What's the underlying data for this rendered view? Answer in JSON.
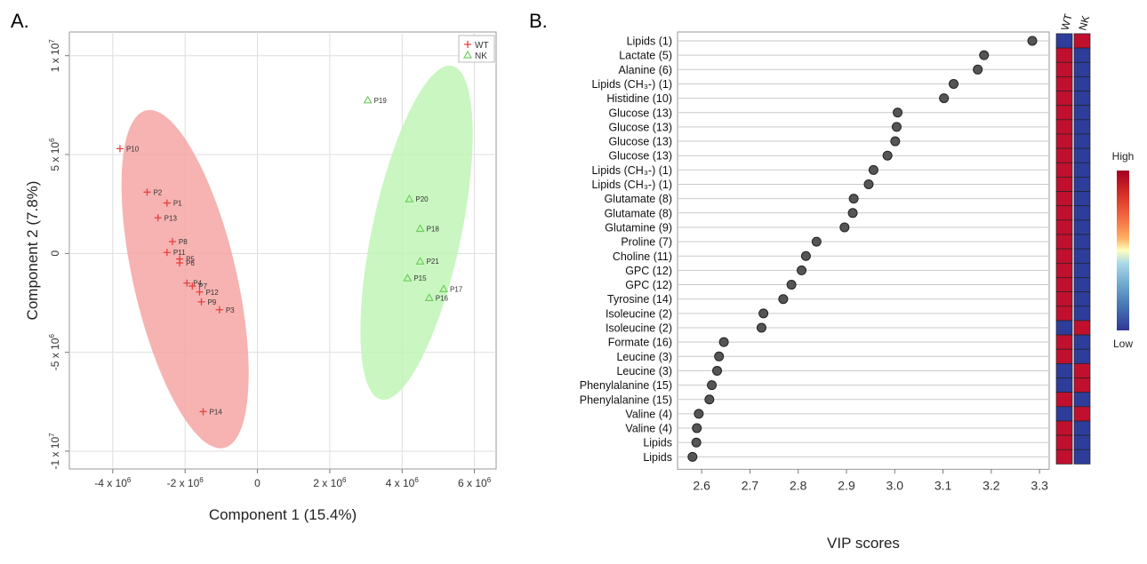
{
  "panel_a_label": "A.",
  "panel_b_label": "B.",
  "chart_data": [
    {
      "type": "scatter",
      "title": "",
      "xlabel": "Component 1 (15.4%)",
      "ylabel": "Component 2 (7.8%)",
      "xlim": [
        -5200000,
        6600000
      ],
      "ylim": [
        -10900000,
        11200000
      ],
      "grid": true,
      "legend_position": "top-right",
      "x_ticks": [
        {
          "value": -4000000,
          "base": "-4 x 10",
          "exp": "6"
        },
        {
          "value": -2000000,
          "base": "-2 x 10",
          "exp": "6"
        },
        {
          "value": 0,
          "base": "0",
          "exp": ""
        },
        {
          "value": 2000000,
          "base": "2 x 10",
          "exp": "6"
        },
        {
          "value": 4000000,
          "base": "4 x 10",
          "exp": "6"
        },
        {
          "value": 6000000,
          "base": "6 x 10",
          "exp": "6"
        }
      ],
      "y_ticks": [
        {
          "value": -10000000,
          "base": "-1 x 10",
          "exp": "7"
        },
        {
          "value": -5000000,
          "base": "-5 x 10",
          "exp": "6"
        },
        {
          "value": 0,
          "base": "0",
          "exp": ""
        },
        {
          "value": 5000000,
          "base": "5 x 10",
          "exp": "6"
        },
        {
          "value": 10000000,
          "base": "1 x 10",
          "exp": "7"
        }
      ],
      "series": [
        {
          "name": "WT",
          "marker": "+",
          "color": "#e8403f",
          "ellipse_color": "#f4a6a3",
          "ellipse": {
            "cx": -2000000,
            "cy": -1300000,
            "rx": 6800000,
            "ry": 1050000,
            "angle_deg": 103
          },
          "points": [
            {
              "label": "P10",
              "x": -3800000,
              "y": 5300000
            },
            {
              "label": "P2",
              "x": -3050000,
              "y": 3100000
            },
            {
              "label": "P1",
              "x": -2500000,
              "y": 2550000
            },
            {
              "label": "P13",
              "x": -2750000,
              "y": 1800000
            },
            {
              "label": "P8",
              "x": -2350000,
              "y": 600000
            },
            {
              "label": "P11",
              "x": -2500000,
              "y": 50000
            },
            {
              "label": "P5",
              "x": -2150000,
              "y": -280000
            },
            {
              "label": "P6",
              "x": -2150000,
              "y": -480000
            },
            {
              "label": "P4",
              "x": -1950000,
              "y": -1500000
            },
            {
              "label": "P7",
              "x": -1800000,
              "y": -1650000
            },
            {
              "label": "P12",
              "x": -1600000,
              "y": -1950000
            },
            {
              "label": "P9",
              "x": -1550000,
              "y": -2450000
            },
            {
              "label": "P3",
              "x": -1050000,
              "y": -2850000
            },
            {
              "label": "P14",
              "x": -1500000,
              "y": -8000000
            }
          ]
        },
        {
          "name": "NK",
          "marker": "triangle",
          "color": "#6fcf5e",
          "ellipse_color": "#bff5b6",
          "ellipse": {
            "cx": 4400000,
            "cy": 1050000,
            "rx": 8100000,
            "ry": 1000000,
            "angle_deg": 77
          },
          "points": [
            {
              "label": "P19",
              "x": 3050000,
              "y": 7750000
            },
            {
              "label": "P20",
              "x": 4200000,
              "y": 2750000
            },
            {
              "label": "P18",
              "x": 4500000,
              "y": 1250000
            },
            {
              "label": "P21",
              "x": 4500000,
              "y": -400000
            },
            {
              "label": "P15",
              "x": 4150000,
              "y": -1250000
            },
            {
              "label": "P17",
              "x": 5150000,
              "y": -1800000
            },
            {
              "label": "P16",
              "x": 4750000,
              "y": -2250000
            }
          ]
        }
      ]
    },
    {
      "type": "scatter",
      "title": "",
      "xlabel": "VIP scores",
      "ylabel": "",
      "xlim": [
        2.55,
        3.32
      ],
      "x_ticks": [
        2.6,
        2.7,
        2.8,
        2.9,
        3.0,
        3.1,
        3.2,
        3.3
      ],
      "x_tick_labels": [
        "2.6",
        "2.7",
        "2.8",
        "2.9",
        "3.0",
        "3.1",
        "3.2",
        "3.3"
      ],
      "heatmap_columns": [
        "WT",
        "NK"
      ],
      "heatmap_colors": {
        "high": "#c0102e",
        "low": "#2e3d9a"
      },
      "color_scale": {
        "high_label": "High",
        "low_label": "Low"
      },
      "points": [
        {
          "label": "Lipids (1)",
          "vip": 3.285,
          "WT": "low",
          "NK": "high"
        },
        {
          "label": "Lactate (5)",
          "vip": 3.185,
          "WT": "high",
          "NK": "low"
        },
        {
          "label": "Alanine (6)",
          "vip": 3.172,
          "WT": "high",
          "NK": "low"
        },
        {
          "label": "Lipids (CH₃-) (1)",
          "vip": 3.122,
          "WT": "high",
          "NK": "low"
        },
        {
          "label": "Histidine (10)",
          "vip": 3.102,
          "WT": "high",
          "NK": "low"
        },
        {
          "label": "Glucose (13)",
          "vip": 3.006,
          "WT": "high",
          "NK": "low"
        },
        {
          "label": "Glucose (13)",
          "vip": 3.004,
          "WT": "high",
          "NK": "low"
        },
        {
          "label": "Glucose (13)",
          "vip": 3.001,
          "WT": "high",
          "NK": "low"
        },
        {
          "label": "Glucose (13)",
          "vip": 2.985,
          "WT": "high",
          "NK": "low"
        },
        {
          "label": "Lipids (CH₃-) (1)",
          "vip": 2.956,
          "WT": "high",
          "NK": "low"
        },
        {
          "label": "Lipids (CH₃-) (1)",
          "vip": 2.946,
          "WT": "high",
          "NK": "low"
        },
        {
          "label": "Glutamate (8)",
          "vip": 2.915,
          "WT": "high",
          "NK": "low"
        },
        {
          "label": "Glutamate (8)",
          "vip": 2.913,
          "WT": "high",
          "NK": "low"
        },
        {
          "label": "Glutamine (9)",
          "vip": 2.896,
          "WT": "high",
          "NK": "low"
        },
        {
          "label": "Proline (7)",
          "vip": 2.838,
          "WT": "high",
          "NK": "low"
        },
        {
          "label": "Choline (11)",
          "vip": 2.816,
          "WT": "high",
          "NK": "low"
        },
        {
          "label": "GPC (12)",
          "vip": 2.807,
          "WT": "high",
          "NK": "low"
        },
        {
          "label": "GPC (12)",
          "vip": 2.786,
          "WT": "high",
          "NK": "low"
        },
        {
          "label": "Tyrosine (14)",
          "vip": 2.769,
          "WT": "high",
          "NK": "low"
        },
        {
          "label": "Isoleucine (2)",
          "vip": 2.728,
          "WT": "high",
          "NK": "low"
        },
        {
          "label": "Isoleucine (2)",
          "vip": 2.724,
          "WT": "low",
          "NK": "high"
        },
        {
          "label": "Formate (16)",
          "vip": 2.646,
          "WT": "high",
          "NK": "low"
        },
        {
          "label": "Leucine (3)",
          "vip": 2.636,
          "WT": "high",
          "NK": "low"
        },
        {
          "label": "Leucine (3)",
          "vip": 2.632,
          "WT": "low",
          "NK": "high"
        },
        {
          "label": "Phenylalanine (15)",
          "vip": 2.621,
          "WT": "low",
          "NK": "high"
        },
        {
          "label": "Phenylalanine (15)",
          "vip": 2.616,
          "WT": "high",
          "NK": "low"
        },
        {
          "label": "Valine (4)",
          "vip": 2.594,
          "WT": "low",
          "NK": "high"
        },
        {
          "label": "Valine (4)",
          "vip": 2.59,
          "WT": "high",
          "NK": "low"
        },
        {
          "label": "Lipids",
          "vip": 2.589,
          "WT": "high",
          "NK": "low"
        },
        {
          "label": "Lipids",
          "vip": 2.581,
          "WT": "high",
          "NK": "low"
        }
      ]
    }
  ]
}
